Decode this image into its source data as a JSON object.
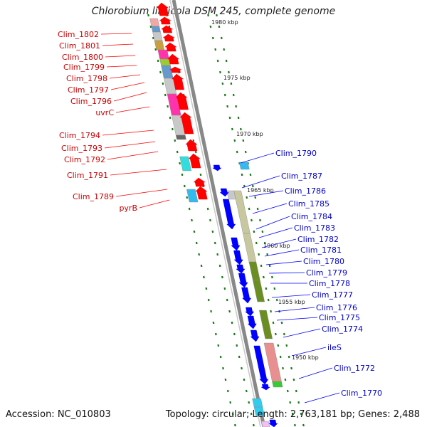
{
  "title": "Chlorobium limicola DSM 245, complete genome",
  "footer": {
    "accession": "Accession: NC_010803",
    "summary": "Topology: circular; Length: 2,763,181 bp; Genes: 2,488"
  },
  "colors": {
    "forward_strand": "#ff0000",
    "reverse_strand": "#0000ff",
    "backbone": "#888888",
    "tick": "#1a7a1a"
  },
  "kbp_labels": [
    "1980 kbp",
    "1975 kbp",
    "1970 kbp",
    "1965 kbp",
    "1960 kbp",
    "1955 kbp",
    "1950 kbp"
  ],
  "left_labels": [
    "Clim_1802",
    "Clim_1801",
    "Clim_1800",
    "Clim_1799",
    "Clim_1798",
    "Clim_1797",
    "Clim_1796",
    "uvrC",
    "Clim_1794",
    "Clim_1793",
    "Clim_1792",
    "Clim_1791",
    "Clim_1789",
    "pyrB"
  ],
  "right_labels": [
    "Clim_1790",
    "Clim_1787",
    "Clim_1786",
    "Clim_1785",
    "Clim_1784",
    "Clim_1783",
    "Clim_1782",
    "Clim_1781",
    "Clim_1780",
    "Clim_1779",
    "Clim_1778",
    "Clim_1777",
    "Clim_1776",
    "Clim_1775",
    "Clim_1774",
    "ileS",
    "Clim_1772",
    "Clim_1770"
  ]
}
